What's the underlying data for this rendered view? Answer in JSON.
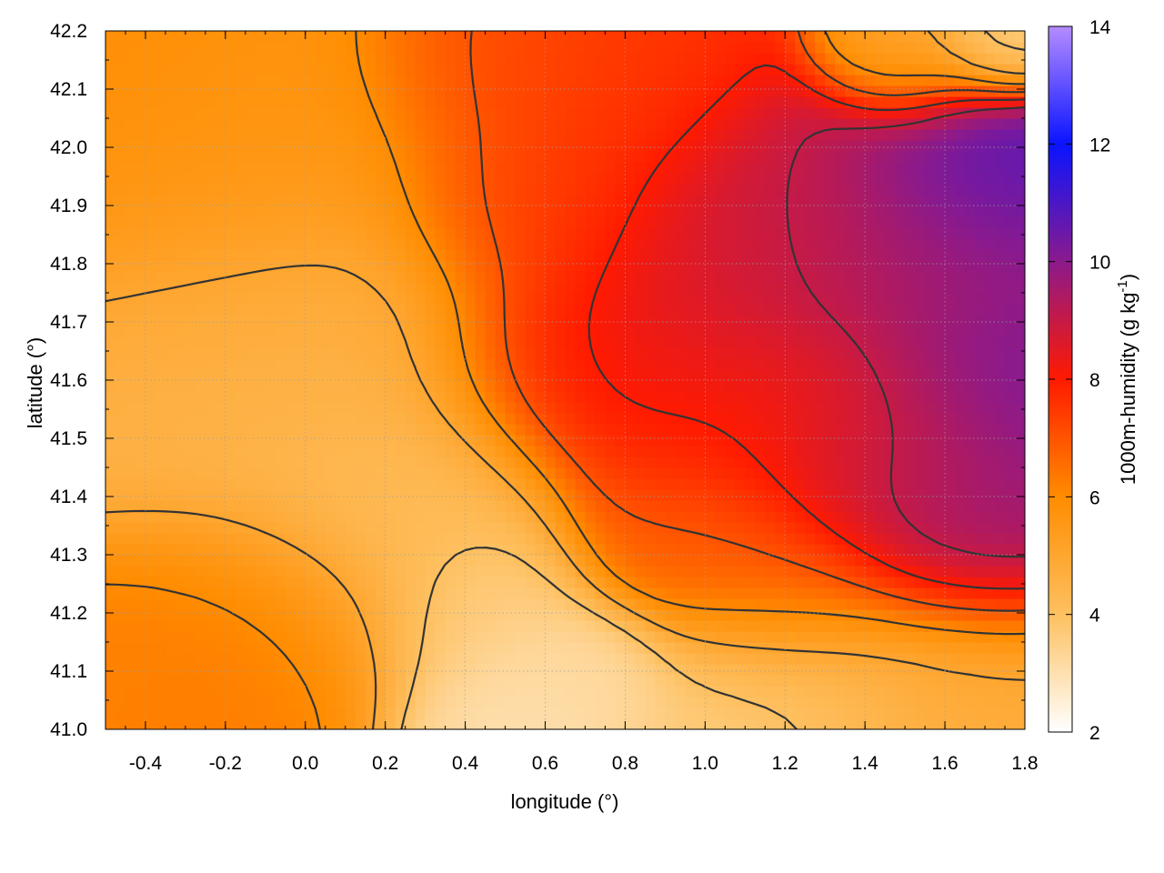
{
  "chart_data": {
    "type": "heatmap",
    "title": "",
    "xlabel": "longitude (°)",
    "ylabel": "latitude (°)",
    "colorbar_label": "1000m-humidity (g kg",
    "colorbar_label_sup": "-1",
    "colorbar_label_end": ")",
    "xlim": [
      -0.5,
      1.8
    ],
    "ylim": [
      41.0,
      42.2
    ],
    "zlim": [
      2,
      14
    ],
    "xticks": [
      "-0.4",
      "-0.2",
      "0.0",
      "0.2",
      "0.4",
      "0.6",
      "0.8",
      "1.0",
      "1.2",
      "1.4",
      "1.6",
      "1.8"
    ],
    "yticks": [
      "41.0",
      "41.1",
      "41.2",
      "41.3",
      "41.4",
      "41.5",
      "41.6",
      "41.7",
      "41.8",
      "41.9",
      "42.0",
      "42.1",
      "42.2"
    ],
    "colorbar_ticks": [
      "2",
      "4",
      "6",
      "8",
      "10",
      "12",
      "14"
    ],
    "grid": true,
    "contour_levels": [
      4,
      5,
      6,
      7,
      8,
      9
    ],
    "colormap": [
      {
        "value": 2,
        "color": "#ffffff"
      },
      {
        "value": 4,
        "color": "#fec060"
      },
      {
        "value": 6,
        "color": "#ff8c00"
      },
      {
        "value": 8,
        "color": "#ff1a00"
      },
      {
        "value": 10,
        "color": "#8b1a8c"
      },
      {
        "value": 12,
        "color": "#0a14ff"
      },
      {
        "value": 14,
        "color": "#b58cff"
      }
    ],
    "humidity_sources": [
      {
        "lon": -0.5,
        "lat": 42.2,
        "value": 6.0,
        "spread": 0.3
      },
      {
        "lon": -0.2,
        "lat": 42.05,
        "value": 5.6,
        "spread": 0.35
      },
      {
        "lon": 0.0,
        "lat": 41.6,
        "value": 4.6,
        "spread": 0.35
      },
      {
        "lon": 0.2,
        "lat": 41.35,
        "value": 4.0,
        "spread": 0.25
      },
      {
        "lon": 0.45,
        "lat": 41.2,
        "value": 3.5,
        "spread": 0.15
      },
      {
        "lon": 0.55,
        "lat": 41.05,
        "value": 3.0,
        "spread": 0.15
      },
      {
        "lon": 0.7,
        "lat": 41.1,
        "value": 3.2,
        "spread": 0.12
      },
      {
        "lon": 1.15,
        "lat": 41.05,
        "value": 3.6,
        "spread": 0.22
      },
      {
        "lon": 1.6,
        "lat": 41.05,
        "value": 4.8,
        "spread": 0.25
      },
      {
        "lon": -0.4,
        "lat": 41.1,
        "value": 6.2,
        "spread": 0.2
      },
      {
        "lon": -0.1,
        "lat": 41.2,
        "value": 6.4,
        "spread": 0.2
      },
      {
        "lon": 0.5,
        "lat": 42.15,
        "value": 7.2,
        "spread": 0.2
      },
      {
        "lon": 0.8,
        "lat": 42.1,
        "value": 7.6,
        "spread": 0.2
      },
      {
        "lon": 0.6,
        "lat": 41.9,
        "value": 7.4,
        "spread": 0.2
      },
      {
        "lon": 0.7,
        "lat": 41.62,
        "value": 8.3,
        "spread": 0.2
      },
      {
        "lon": 1.0,
        "lat": 41.78,
        "value": 8.6,
        "spread": 0.25
      },
      {
        "lon": 1.25,
        "lat": 41.9,
        "value": 9.0,
        "spread": 0.22
      },
      {
        "lon": 1.0,
        "lat": 41.45,
        "value": 7.8,
        "spread": 0.2
      },
      {
        "lon": 1.3,
        "lat": 41.55,
        "value": 8.2,
        "spread": 0.2
      },
      {
        "lon": 0.95,
        "lat": 41.32,
        "value": 6.6,
        "spread": 0.15
      },
      {
        "lon": 1.2,
        "lat": 41.25,
        "value": 7.0,
        "spread": 0.18
      },
      {
        "lon": 1.5,
        "lat": 41.8,
        "value": 9.6,
        "spread": 0.22
      },
      {
        "lon": 1.65,
        "lat": 41.95,
        "value": 10.8,
        "spread": 0.18
      },
      {
        "lon": 1.7,
        "lat": 41.6,
        "value": 10.2,
        "spread": 0.2
      },
      {
        "lon": 1.65,
        "lat": 41.35,
        "value": 9.8,
        "spread": 0.2
      },
      {
        "lon": 1.45,
        "lat": 41.45,
        "value": 9.0,
        "spread": 0.18
      },
      {
        "lon": 1.5,
        "lat": 42.15,
        "value": 5.0,
        "spread": 0.12
      },
      {
        "lon": 1.75,
        "lat": 42.18,
        "value": 3.5,
        "spread": 0.1
      }
    ]
  }
}
